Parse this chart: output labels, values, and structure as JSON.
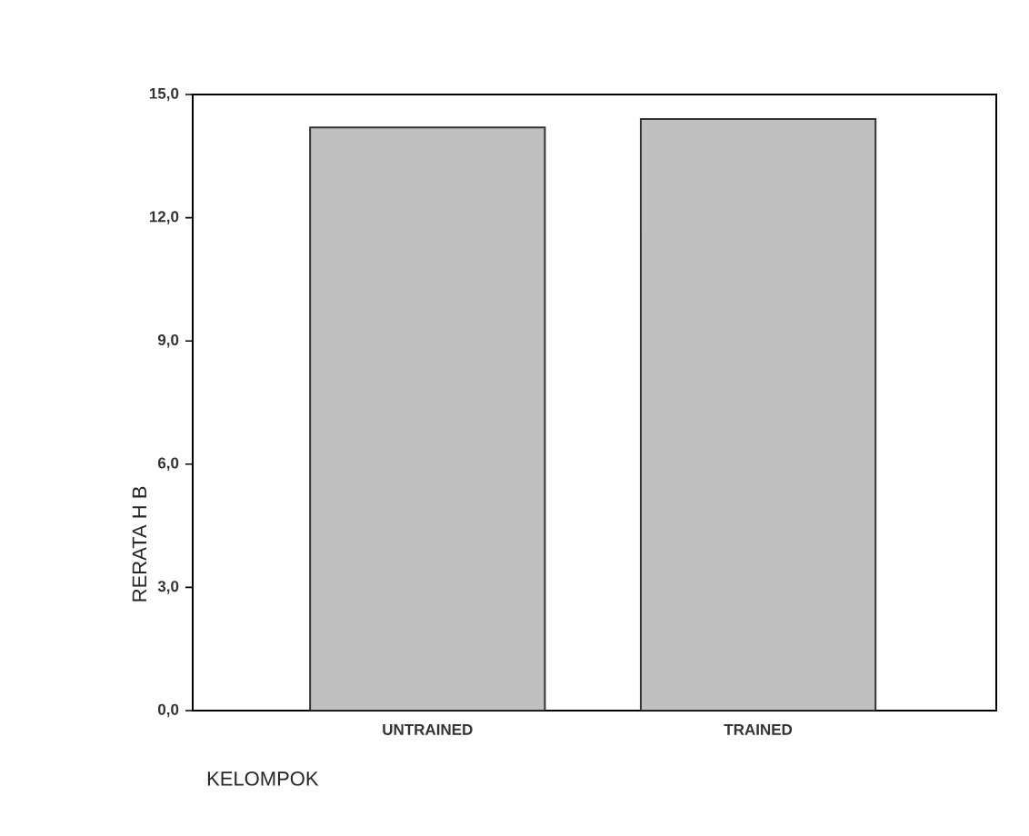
{
  "chart_data": {
    "type": "bar",
    "xlabel": "KELOMPOK",
    "ylabel": "RERATA H B",
    "categories": [
      "UNTRAINED",
      "TRAINED"
    ],
    "values": [
      14.2,
      14.4
    ],
    "color": "#c0c0c0",
    "ylim": [
      0,
      15
    ],
    "yticks": [
      {
        "value": 0,
        "label": "0,0"
      },
      {
        "value": 3,
        "label": "3,0"
      },
      {
        "value": 6,
        "label": "6,0"
      },
      {
        "value": 9,
        "label": "9,0"
      },
      {
        "value": 12,
        "label": "12,0"
      },
      {
        "value": 15,
        "label": "15,0"
      }
    ],
    "grid": false
  }
}
